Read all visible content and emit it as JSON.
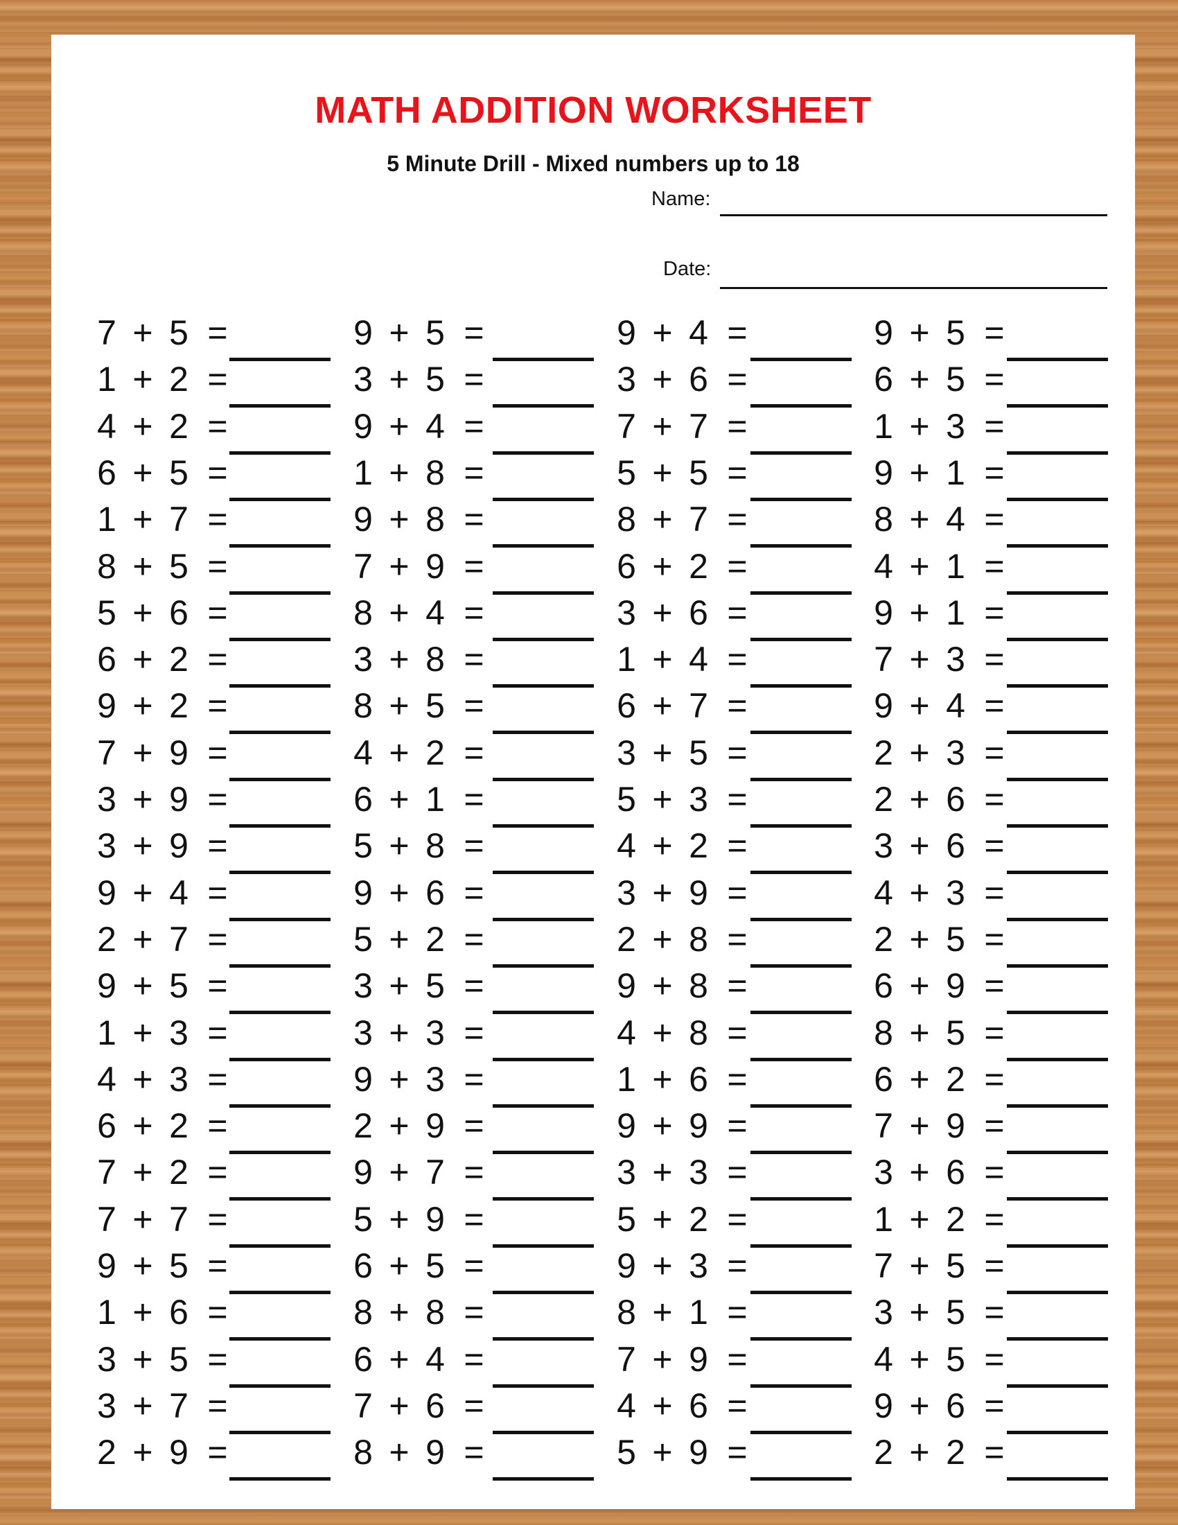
{
  "header": {
    "title": "MATH ADDITION WORKSHEET",
    "subtitle": "5 Minute Drill - Mixed numbers up to 18",
    "name_label": "Name:",
    "date_label": "Date:"
  },
  "colors": {
    "title": "#e8141b",
    "text": "#111111",
    "background_wood": "#c98a4f"
  },
  "operator": "+",
  "equals": "=",
  "columns": [
    [
      [
        7,
        5
      ],
      [
        1,
        2
      ],
      [
        4,
        2
      ],
      [
        6,
        5
      ],
      [
        1,
        7
      ],
      [
        8,
        5
      ],
      [
        5,
        6
      ],
      [
        6,
        2
      ],
      [
        9,
        2
      ],
      [
        7,
        9
      ],
      [
        3,
        9
      ],
      [
        3,
        9
      ],
      [
        9,
        4
      ],
      [
        2,
        7
      ],
      [
        9,
        5
      ],
      [
        1,
        3
      ],
      [
        4,
        3
      ],
      [
        6,
        2
      ],
      [
        7,
        2
      ],
      [
        7,
        7
      ],
      [
        9,
        5
      ],
      [
        1,
        6
      ],
      [
        3,
        5
      ],
      [
        3,
        7
      ],
      [
        2,
        9
      ]
    ],
    [
      [
        9,
        5
      ],
      [
        3,
        5
      ],
      [
        9,
        4
      ],
      [
        1,
        8
      ],
      [
        9,
        8
      ],
      [
        7,
        9
      ],
      [
        8,
        4
      ],
      [
        3,
        8
      ],
      [
        8,
        5
      ],
      [
        4,
        2
      ],
      [
        6,
        1
      ],
      [
        5,
        8
      ],
      [
        9,
        6
      ],
      [
        5,
        2
      ],
      [
        3,
        5
      ],
      [
        3,
        3
      ],
      [
        9,
        3
      ],
      [
        2,
        9
      ],
      [
        9,
        7
      ],
      [
        5,
        9
      ],
      [
        6,
        5
      ],
      [
        8,
        8
      ],
      [
        6,
        4
      ],
      [
        7,
        6
      ],
      [
        8,
        9
      ]
    ],
    [
      [
        9,
        4
      ],
      [
        3,
        6
      ],
      [
        7,
        7
      ],
      [
        5,
        5
      ],
      [
        8,
        7
      ],
      [
        6,
        2
      ],
      [
        3,
        6
      ],
      [
        1,
        4
      ],
      [
        6,
        7
      ],
      [
        3,
        5
      ],
      [
        5,
        3
      ],
      [
        4,
        2
      ],
      [
        3,
        9
      ],
      [
        2,
        8
      ],
      [
        9,
        8
      ],
      [
        4,
        8
      ],
      [
        1,
        6
      ],
      [
        9,
        9
      ],
      [
        3,
        3
      ],
      [
        5,
        2
      ],
      [
        9,
        3
      ],
      [
        8,
        1
      ],
      [
        7,
        9
      ],
      [
        4,
        6
      ],
      [
        5,
        9
      ]
    ],
    [
      [
        9,
        5
      ],
      [
        6,
        5
      ],
      [
        1,
        3
      ],
      [
        9,
        1
      ],
      [
        8,
        4
      ],
      [
        4,
        1
      ],
      [
        9,
        1
      ],
      [
        7,
        3
      ],
      [
        9,
        4
      ],
      [
        2,
        3
      ],
      [
        2,
        6
      ],
      [
        3,
        6
      ],
      [
        4,
        3
      ],
      [
        2,
        5
      ],
      [
        6,
        9
      ],
      [
        8,
        5
      ],
      [
        6,
        2
      ],
      [
        7,
        9
      ],
      [
        3,
        6
      ],
      [
        1,
        2
      ],
      [
        7,
        5
      ],
      [
        3,
        5
      ],
      [
        4,
        5
      ],
      [
        9,
        6
      ],
      [
        2,
        2
      ]
    ]
  ]
}
